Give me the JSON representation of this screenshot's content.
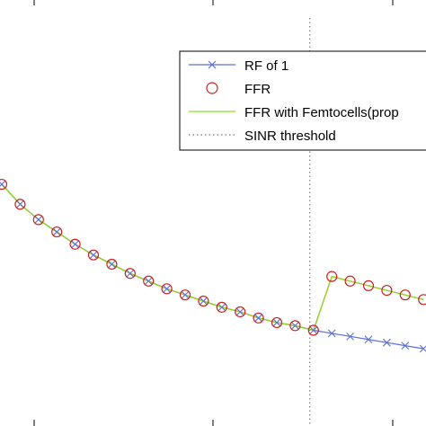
{
  "chart_data": {
    "type": "line",
    "title": "",
    "xlabel": "",
    "ylabel": "",
    "xlim": [
      0,
      23
    ],
    "ylim": [
      0,
      23
    ],
    "grid": false,
    "legend_position": "top-right",
    "threshold_x": 16.8,
    "series": [
      {
        "name": "RF of 1",
        "color": "#5b6fd6",
        "marker": "x",
        "x": [
          0,
          1,
          2,
          3,
          4,
          5,
          6,
          7,
          8,
          9,
          10,
          11,
          12,
          13,
          14,
          15,
          16,
          17,
          18,
          19,
          20,
          21,
          22,
          23
        ],
        "y": [
          14.5,
          13.2,
          12.2,
          11.4,
          10.6,
          9.9,
          9.3,
          8.7,
          8.2,
          7.7,
          7.3,
          6.9,
          6.5,
          6.2,
          5.8,
          5.5,
          5.3,
          5.0,
          4.8,
          4.6,
          4.4,
          4.2,
          4.0,
          3.8
        ]
      },
      {
        "name": "FFR",
        "color": "#cc2222",
        "marker": "o",
        "x": [
          0,
          1,
          2,
          3,
          4,
          5,
          6,
          7,
          8,
          9,
          10,
          11,
          12,
          13,
          14,
          15,
          16,
          17,
          18,
          19,
          20,
          21,
          22,
          23
        ],
        "y": [
          14.5,
          13.2,
          12.2,
          11.4,
          10.6,
          9.9,
          9.3,
          8.7,
          8.2,
          7.7,
          7.3,
          6.9,
          6.5,
          6.2,
          5.8,
          5.5,
          5.3,
          5.0,
          8.5,
          8.2,
          7.9,
          7.6,
          7.3,
          7.0
        ]
      },
      {
        "name": "FFR with Femtocells(prop",
        "color": "#88e020",
        "marker": "none",
        "x": [
          0,
          1,
          2,
          3,
          4,
          5,
          6,
          7,
          8,
          9,
          10,
          11,
          12,
          13,
          14,
          15,
          16,
          17,
          18,
          19,
          20,
          21,
          22,
          23
        ],
        "y": [
          14.5,
          13.2,
          12.2,
          11.4,
          10.6,
          9.9,
          9.3,
          8.7,
          8.2,
          7.7,
          7.3,
          6.9,
          6.5,
          6.2,
          5.8,
          5.5,
          5.3,
          5.0,
          8.5,
          8.2,
          7.9,
          7.6,
          7.3,
          7.0
        ]
      }
    ],
    "threshold_series_name": "SINR threshold"
  }
}
